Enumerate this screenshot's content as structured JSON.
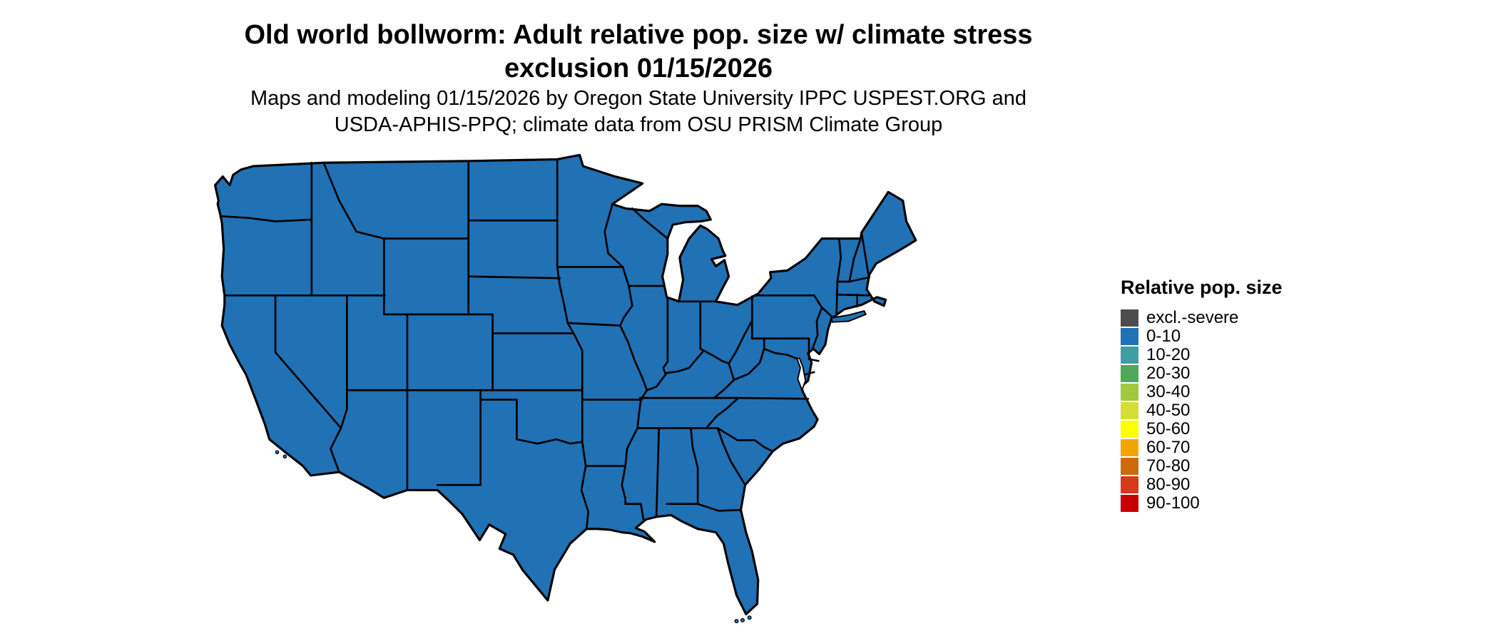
{
  "title": {
    "line1": "Old world bollworm: Adult relative pop. size w/ climate stress",
    "line2": "exclusion 01/15/2026"
  },
  "subtitle": {
    "line1": "Maps and modeling 01/15/2026 by Oregon State University IPPC USPEST.ORG and",
    "line2": "USDA-APHIS-PPQ; climate data from OSU PRISM Climate Group"
  },
  "map": {
    "region": "Continental United States",
    "date_shown": "01/15/2026",
    "value_category_all_states": "0-10",
    "fill_color": "#2171b5",
    "border_color": "#000000",
    "water_color": "#ffffff"
  },
  "legend": {
    "title": "Relative pop. size",
    "items": [
      {
        "label": "excl.-severe",
        "color": "#4d4d4d"
      },
      {
        "label": "0-10",
        "color": "#2171b5"
      },
      {
        "label": "10-20",
        "color": "#3f9da6"
      },
      {
        "label": "20-30",
        "color": "#4fa85a"
      },
      {
        "label": "30-40",
        "color": "#a0c841"
      },
      {
        "label": "40-50",
        "color": "#d3df34"
      },
      {
        "label": "50-60",
        "color": "#ffff00"
      },
      {
        "label": "60-70",
        "color": "#f0a500"
      },
      {
        "label": "70-80",
        "color": "#cc6b0e"
      },
      {
        "label": "80-90",
        "color": "#d63a1c"
      },
      {
        "label": "90-100",
        "color": "#c40000"
      }
    ]
  }
}
